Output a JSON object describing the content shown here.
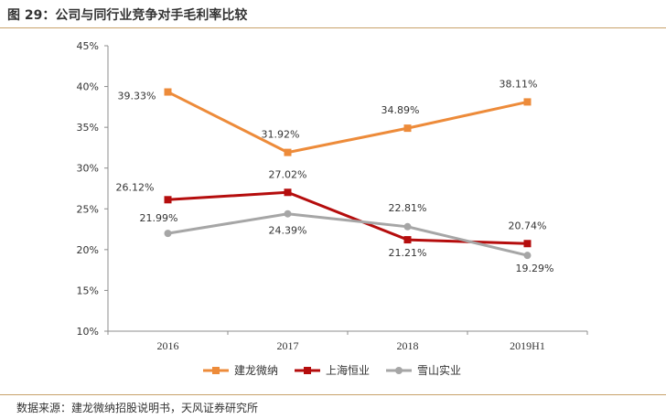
{
  "title": "图 29：公司与同行业竞争对手毛利率比较",
  "source": "数据来源：建龙微纳招股说明书，天风证券研究所",
  "chart_data": {
    "type": "line",
    "categories": [
      "2016",
      "2017",
      "2018",
      "2019H1"
    ],
    "y_ticks": [
      "10%",
      "15%",
      "20%",
      "25%",
      "30%",
      "35%",
      "40%",
      "45%"
    ],
    "ylim": [
      10,
      45
    ],
    "grid": false,
    "legend_position": "bottom",
    "series": [
      {
        "name": "建龙微纳",
        "color": "#ed8b3a",
        "marker": "square",
        "values": [
          39.33,
          31.92,
          34.89,
          38.11
        ],
        "labels": [
          "39.33%",
          "31.92%",
          "34.89%",
          "38.11%"
        ]
      },
      {
        "name": "上海恒业",
        "color": "#b50d0d",
        "marker": "square",
        "values": [
          26.12,
          27.02,
          21.21,
          20.74
        ],
        "labels": [
          "26.12%",
          "27.02%",
          "21.21%",
          "20.74%"
        ]
      },
      {
        "name": "雪山实业",
        "color": "#a6a6a6",
        "marker": "circle",
        "values": [
          21.99,
          24.39,
          22.81,
          19.29
        ],
        "labels": [
          "21.99%",
          "24.39%",
          "22.81%",
          "19.29%"
        ]
      }
    ]
  }
}
